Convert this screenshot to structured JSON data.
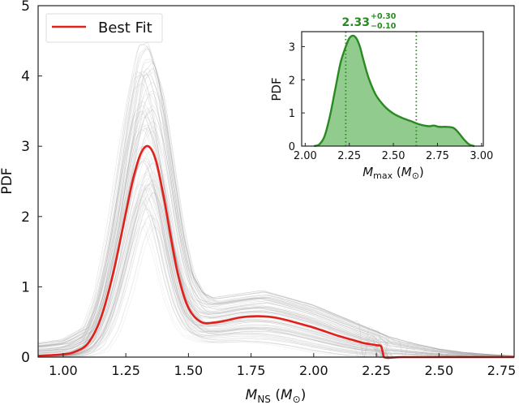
{
  "chart_data": [
    {
      "type": "line",
      "role": "main",
      "title": "",
      "xlabel": "M_NS (M_⊙)",
      "xlabel_parts": {
        "main": "M",
        "sub": "NS",
        "unit_open": " (",
        "unit": "M",
        "unit_sub": "⊙",
        "unit_close": ")"
      },
      "ylabel": "PDF",
      "xlim": [
        0.9,
        2.8
      ],
      "ylim": [
        0,
        5
      ],
      "xticks": [
        1.0,
        1.25,
        1.5,
        1.75,
        2.0,
        2.25,
        2.5,
        2.75
      ],
      "xtick_labels": [
        "1.00",
        "1.25",
        "1.50",
        "1.75",
        "2.00",
        "2.25",
        "2.50",
        "2.75"
      ],
      "yticks": [
        0,
        1,
        2,
        3,
        4,
        5
      ],
      "ytick_labels": [
        "0",
        "1",
        "2",
        "3",
        "4",
        "5"
      ],
      "grid": false,
      "legend": {
        "position": "top-left",
        "entries": [
          {
            "label": "Best Fit",
            "color": "#e0201b"
          }
        ]
      },
      "series": [
        {
          "name": "Best Fit",
          "color": "#e0201b",
          "x": [
            0.9,
            1.0,
            1.05,
            1.1,
            1.15,
            1.2,
            1.25,
            1.28,
            1.31,
            1.34,
            1.37,
            1.4,
            1.43,
            1.46,
            1.5,
            1.55,
            1.6,
            1.65,
            1.7,
            1.75,
            1.8,
            1.85,
            1.9,
            1.95,
            2.0,
            2.05,
            2.1,
            2.15,
            2.2,
            2.25,
            2.27,
            2.28,
            2.35,
            2.5,
            2.65,
            2.8
          ],
          "y": [
            0.02,
            0.04,
            0.08,
            0.2,
            0.55,
            1.2,
            2.05,
            2.55,
            2.9,
            3.0,
            2.8,
            2.3,
            1.7,
            1.15,
            0.7,
            0.5,
            0.49,
            0.52,
            0.56,
            0.58,
            0.58,
            0.56,
            0.52,
            0.47,
            0.42,
            0.36,
            0.3,
            0.25,
            0.2,
            0.17,
            0.15,
            0.0,
            0.0,
            0.0,
            0.0,
            0.0
          ]
        }
      ],
      "posterior_band": {
        "name": "Posterior samples",
        "color": "#9a9a9a",
        "description": "Many grey sample curves around the best fit",
        "x": [
          0.9,
          1.0,
          1.1,
          1.15,
          1.2,
          1.25,
          1.3,
          1.34,
          1.38,
          1.42,
          1.46,
          1.5,
          1.55,
          1.6,
          1.7,
          1.8,
          1.9,
          2.0,
          2.1,
          2.2,
          2.3,
          2.4,
          2.5,
          2.6,
          2.7,
          2.8
        ],
        "upper": [
          0.2,
          0.25,
          0.45,
          1.0,
          2.0,
          3.3,
          4.4,
          4.5,
          4.0,
          3.0,
          2.0,
          1.3,
          0.95,
          0.85,
          0.9,
          0.95,
          0.85,
          0.75,
          0.6,
          0.45,
          0.3,
          0.2,
          0.12,
          0.07,
          0.04,
          0.02
        ],
        "lower": [
          0.0,
          0.0,
          0.02,
          0.08,
          0.35,
          0.9,
          1.6,
          1.9,
          1.5,
          0.9,
          0.5,
          0.3,
          0.22,
          0.2,
          0.22,
          0.2,
          0.15,
          0.08,
          0.03,
          0.0,
          0.0,
          0.0,
          0.0,
          0.0,
          0.0,
          0.0
        ]
      }
    },
    {
      "type": "area",
      "role": "inset",
      "title": "2.33 +0.30 −0.10",
      "annotation": {
        "value": "2.33",
        "plus": "+0.30",
        "minus": "−0.10",
        "color": "#2a8a22"
      },
      "xlabel": "M_max (M_⊙)",
      "xlabel_parts": {
        "main": "M",
        "sub": "max",
        "unit_open": " (",
        "unit": "M",
        "unit_sub": "⊙",
        "unit_close": ")"
      },
      "ylabel": "PDF",
      "xlim": [
        1.98,
        3.01
      ],
      "ylim": [
        0,
        3.45
      ],
      "xticks": [
        2.0,
        2.25,
        2.5,
        2.75,
        3.0
      ],
      "xtick_labels": [
        "2.00",
        "2.25",
        "2.50",
        "2.75",
        "3.00"
      ],
      "yticks": [
        0,
        1,
        2,
        3
      ],
      "ytick_labels": [
        "0",
        "1",
        "2",
        "3"
      ],
      "grid": false,
      "vlines": [
        2.23,
        2.63
      ],
      "series": [
        {
          "name": "M_max posterior",
          "color": "#2a8a22",
          "fill": "#7fc27a",
          "x": [
            2.05,
            2.08,
            2.11,
            2.14,
            2.17,
            2.2,
            2.23,
            2.25,
            2.27,
            2.29,
            2.31,
            2.33,
            2.36,
            2.4,
            2.45,
            2.5,
            2.55,
            2.6,
            2.65,
            2.7,
            2.73,
            2.76,
            2.8,
            2.84,
            2.87,
            2.9,
            2.93,
            2.96
          ],
          "y": [
            0.0,
            0.05,
            0.3,
            0.9,
            1.7,
            2.5,
            3.0,
            3.25,
            3.33,
            3.25,
            3.0,
            2.6,
            2.05,
            1.55,
            1.2,
            0.98,
            0.85,
            0.75,
            0.65,
            0.6,
            0.62,
            0.58,
            0.58,
            0.55,
            0.4,
            0.2,
            0.05,
            0.0
          ]
        }
      ]
    }
  ]
}
